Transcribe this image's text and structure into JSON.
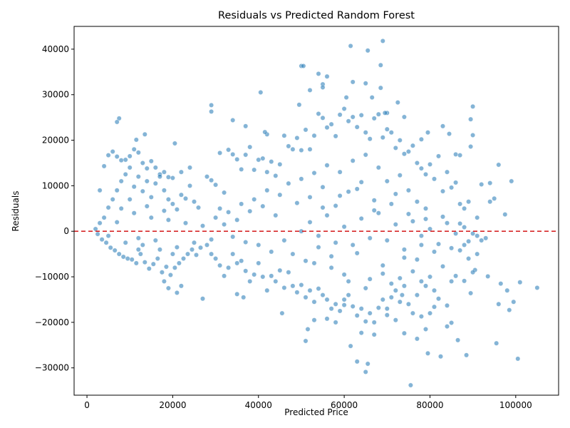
{
  "chart_data": {
    "type": "scatter",
    "title": "Residuals vs Predicted Random Forest",
    "xlabel": "Predicted Price",
    "ylabel": "Residuals",
    "xlim": [
      -3000,
      110000
    ],
    "ylim": [
      -36000,
      45000
    ],
    "xticks": [
      0,
      20000,
      40000,
      60000,
      80000,
      100000
    ],
    "xtick_labels": [
      "0",
      "20000",
      "40000",
      "60000",
      "80000",
      "100000"
    ],
    "yticks": [
      -30000,
      -20000,
      -10000,
      0,
      10000,
      20000,
      30000,
      40000
    ],
    "ytick_labels": [
      "−30000",
      "−20000",
      "−10000",
      "0",
      "10000",
      "20000",
      "30000",
      "40000"
    ],
    "reference_line": {
      "y": 0,
      "style": "dashed",
      "color": "#d62728"
    },
    "grid": false,
    "point_color": "#1f77b4",
    "points": [
      [
        7500,
        24800
      ],
      [
        7000,
        24000
      ],
      [
        13500,
        21300
      ],
      [
        11500,
        20100
      ],
      [
        20500,
        19300
      ],
      [
        29000,
        27700
      ],
      [
        29000,
        26300
      ],
      [
        34000,
        24400
      ],
      [
        40500,
        30500
      ],
      [
        37000,
        23100
      ],
      [
        42000,
        21300
      ],
      [
        41500,
        21800
      ],
      [
        49500,
        27800
      ],
      [
        50000,
        36300
      ],
      [
        50500,
        36300
      ],
      [
        52000,
        31000
      ],
      [
        54000,
        34600
      ],
      [
        55000,
        32300
      ],
      [
        55000,
        31600
      ],
      [
        56000,
        34000
      ],
      [
        61500,
        40700
      ],
      [
        65000,
        32500
      ],
      [
        69000,
        41800
      ],
      [
        68500,
        36500
      ],
      [
        65500,
        39700
      ],
      [
        62000,
        32800
      ],
      [
        60500,
        29400
      ],
      [
        66500,
        29400
      ],
      [
        68500,
        31500
      ],
      [
        72500,
        28300
      ],
      [
        70000,
        26000
      ],
      [
        69500,
        26000
      ],
      [
        74000,
        25100
      ],
      [
        79500,
        21700
      ],
      [
        83000,
        23100
      ],
      [
        84500,
        21400
      ],
      [
        90000,
        27400
      ],
      [
        89500,
        24600
      ],
      [
        90000,
        21100
      ],
      [
        78000,
        20200
      ],
      [
        86000,
        16900
      ],
      [
        87000,
        16700
      ],
      [
        89500,
        18600
      ],
      [
        96000,
        14600
      ],
      [
        99000,
        11000
      ],
      [
        92000,
        10300
      ],
      [
        94000,
        10600
      ],
      [
        97500,
        3700
      ],
      [
        95000,
        7200
      ],
      [
        94000,
        6500
      ],
      [
        12000,
        -4000
      ],
      [
        18000,
        -11000
      ],
      [
        19000,
        -12500
      ],
      [
        21000,
        -13500
      ],
      [
        22000,
        -12000
      ],
      [
        27000,
        -14800
      ],
      [
        35000,
        -13800
      ],
      [
        36500,
        -14500
      ],
      [
        45500,
        -18000
      ],
      [
        51000,
        -24100
      ],
      [
        51500,
        -21500
      ],
      [
        53000,
        -19500
      ],
      [
        56000,
        -19200
      ],
      [
        58000,
        -20000
      ],
      [
        60000,
        -16200
      ],
      [
        61500,
        -25200
      ],
      [
        63000,
        -28600
      ],
      [
        65500,
        -29100
      ],
      [
        65000,
        -30900
      ],
      [
        67000,
        -22700
      ],
      [
        64000,
        -22300
      ],
      [
        70000,
        -18400
      ],
      [
        72000,
        -19500
      ],
      [
        74000,
        -22400
      ],
      [
        75500,
        -33800
      ],
      [
        77000,
        -23600
      ],
      [
        79000,
        -21500
      ],
      [
        78000,
        -18700
      ],
      [
        80000,
        -18000
      ],
      [
        81000,
        -16600
      ],
      [
        82500,
        -27500
      ],
      [
        84000,
        -20900
      ],
      [
        85000,
        -20100
      ],
      [
        86500,
        -23900
      ],
      [
        88500,
        -27200
      ],
      [
        88000,
        -10900
      ],
      [
        89500,
        -13600
      ],
      [
        90500,
        -8500
      ],
      [
        93500,
        -9900
      ],
      [
        95500,
        -24600
      ],
      [
        96000,
        -16000
      ],
      [
        96500,
        -11500
      ],
      [
        98000,
        -13000
      ],
      [
        98500,
        -17300
      ],
      [
        99500,
        -15500
      ],
      [
        100500,
        -28000
      ],
      [
        101000,
        -11200
      ],
      [
        105000,
        -12400
      ],
      [
        79500,
        -26800
      ],
      [
        73500,
        -14000
      ],
      [
        2000,
        500
      ],
      [
        2500,
        -600
      ],
      [
        3000,
        1800
      ],
      [
        3500,
        -1800
      ],
      [
        4000,
        3000
      ],
      [
        4500,
        -2500
      ],
      [
        5000,
        5200
      ],
      [
        5500,
        -3600
      ],
      [
        6000,
        7000
      ],
      [
        6500,
        -4200
      ],
      [
        7000,
        9000
      ],
      [
        7500,
        -5000
      ],
      [
        8000,
        11000
      ],
      [
        8500,
        -5600
      ],
      [
        9000,
        12500
      ],
      [
        9500,
        -6000
      ],
      [
        10000,
        14000
      ],
      [
        10500,
        -6200
      ],
      [
        11000,
        9800
      ],
      [
        11500,
        -7000
      ],
      [
        12000,
        12000
      ],
      [
        12500,
        -5000
      ],
      [
        13000,
        8800
      ],
      [
        13500,
        -6800
      ],
      [
        14000,
        11000
      ],
      [
        14500,
        -8200
      ],
      [
        15000,
        7500
      ],
      [
        15500,
        -7200
      ],
      [
        16000,
        10500
      ],
      [
        16500,
        -6000
      ],
      [
        17000,
        12500
      ],
      [
        17500,
        -9000
      ],
      [
        18000,
        9000
      ],
      [
        18500,
        -7800
      ],
      [
        19000,
        7000
      ],
      [
        19500,
        -9600
      ],
      [
        20000,
        6000
      ],
      [
        20500,
        -8000
      ],
      [
        21000,
        4800
      ],
      [
        21500,
        -7000
      ],
      [
        22000,
        8000
      ],
      [
        22500,
        -6000
      ],
      [
        23000,
        7200
      ],
      [
        23500,
        -5000
      ],
      [
        24000,
        10000
      ],
      [
        24500,
        -4000
      ],
      [
        25000,
        6500
      ],
      [
        25500,
        -5200
      ],
      [
        26000,
        5200
      ],
      [
        26500,
        -3600
      ],
      [
        3000,
        9000
      ],
      [
        4000,
        14300
      ],
      [
        5000,
        16700
      ],
      [
        6000,
        17500
      ],
      [
        7000,
        16400
      ],
      [
        8000,
        15600
      ],
      [
        9000,
        15700
      ],
      [
        10000,
        16500
      ],
      [
        11000,
        18000
      ],
      [
        12000,
        17300
      ],
      [
        13000,
        15000
      ],
      [
        14000,
        13800
      ],
      [
        15000,
        15400
      ],
      [
        16000,
        14000
      ],
      [
        17000,
        12000
      ],
      [
        18000,
        13000
      ],
      [
        19000,
        11900
      ],
      [
        20000,
        11700
      ],
      [
        22000,
        13000
      ],
      [
        24000,
        14000
      ],
      [
        28000,
        12000
      ],
      [
        29000,
        11200
      ],
      [
        30000,
        10200
      ],
      [
        31000,
        17200
      ],
      [
        32000,
        8500
      ],
      [
        33000,
        17900
      ],
      [
        34000,
        16900
      ],
      [
        35000,
        15800
      ],
      [
        36000,
        13600
      ],
      [
        37000,
        16800
      ],
      [
        38000,
        18500
      ],
      [
        39000,
        13500
      ],
      [
        40000,
        15700
      ],
      [
        41000,
        16000
      ],
      [
        42000,
        13000
      ],
      [
        43000,
        15300
      ],
      [
        44000,
        12200
      ],
      [
        45000,
        14700
      ],
      [
        46000,
        21000
      ],
      [
        47000,
        18700
      ],
      [
        28000,
        -3000
      ],
      [
        29000,
        -5000
      ],
      [
        30000,
        -6000
      ],
      [
        31000,
        -7500
      ],
      [
        32000,
        -9800
      ],
      [
        33000,
        -8000
      ],
      [
        34000,
        -5000
      ],
      [
        35000,
        -7000
      ],
      [
        36000,
        -6500
      ],
      [
        37000,
        -8700
      ],
      [
        38000,
        -11000
      ],
      [
        39000,
        -9500
      ],
      [
        40000,
        -7000
      ],
      [
        41000,
        -10000
      ],
      [
        42000,
        -13000
      ],
      [
        43000,
        -9800
      ],
      [
        44000,
        -11000
      ],
      [
        45000,
        -8600
      ],
      [
        46000,
        -12400
      ],
      [
        47000,
        -9000
      ],
      [
        48000,
        -12000
      ],
      [
        49000,
        -13400
      ],
      [
        50000,
        -11800
      ],
      [
        51000,
        -14500
      ],
      [
        52000,
        -13000
      ],
      [
        53000,
        -15500
      ],
      [
        54000,
        -12600
      ],
      [
        55000,
        -14000
      ],
      [
        56000,
        -15000
      ],
      [
        57000,
        -17000
      ],
      [
        58000,
        -16000
      ],
      [
        59000,
        -17500
      ],
      [
        60000,
        -15000
      ],
      [
        61000,
        -14000
      ],
      [
        62000,
        -16500
      ],
      [
        63000,
        -18500
      ],
      [
        64000,
        -17000
      ],
      [
        65000,
        -19800
      ],
      [
        66000,
        -18000
      ],
      [
        67000,
        -20000
      ],
      [
        68000,
        -16800
      ],
      [
        69000,
        -15000
      ],
      [
        70000,
        -17000
      ],
      [
        71000,
        -14500
      ],
      [
        72000,
        -13000
      ],
      [
        73000,
        -15500
      ],
      [
        74000,
        -12000
      ],
      [
        75000,
        -16000
      ],
      [
        76000,
        -18000
      ],
      [
        77000,
        -14000
      ],
      [
        48000,
        18000
      ],
      [
        49000,
        20500
      ],
      [
        50000,
        17800
      ],
      [
        51000,
        22300
      ],
      [
        52000,
        18000
      ],
      [
        53000,
        21000
      ],
      [
        54000,
        25800
      ],
      [
        55000,
        24900
      ],
      [
        56000,
        22800
      ],
      [
        57000,
        23500
      ],
      [
        58000,
        20900
      ],
      [
        59000,
        25600
      ],
      [
        60000,
        26900
      ],
      [
        61000,
        24200
      ],
      [
        62000,
        25100
      ],
      [
        63000,
        22900
      ],
      [
        64000,
        25500
      ],
      [
        65000,
        21700
      ],
      [
        66000,
        20300
      ],
      [
        67000,
        24800
      ],
      [
        68000,
        25700
      ],
      [
        69000,
        20600
      ],
      [
        70000,
        22400
      ],
      [
        71000,
        21700
      ],
      [
        72000,
        18300
      ],
      [
        73000,
        20000
      ],
      [
        74000,
        17000
      ],
      [
        75000,
        17500
      ],
      [
        76000,
        18800
      ],
      [
        77000,
        15000
      ],
      [
        78000,
        13800
      ],
      [
        79000,
        12500
      ],
      [
        80000,
        14700
      ],
      [
        81000,
        11500
      ],
      [
        82000,
        16500
      ],
      [
        83000,
        8800
      ],
      [
        84000,
        13000
      ],
      [
        85000,
        9600
      ],
      [
        86000,
        10700
      ],
      [
        87000,
        6000
      ],
      [
        88000,
        5000
      ],
      [
        89000,
        6500
      ],
      [
        90000,
        -500
      ],
      [
        91000,
        3000
      ],
      [
        92000,
        -2000
      ],
      [
        93000,
        -1500
      ],
      [
        91000,
        -5000
      ],
      [
        90000,
        -9000
      ],
      [
        89000,
        -6000
      ],
      [
        88000,
        -3000
      ],
      [
        87000,
        -4200
      ],
      [
        86000,
        -9800
      ],
      [
        85000,
        -11000
      ],
      [
        84000,
        -16300
      ],
      [
        83000,
        -7700
      ],
      [
        82000,
        -14800
      ],
      [
        81000,
        -13000
      ],
      [
        80000,
        -10000
      ],
      [
        79000,
        -12000
      ],
      [
        78000,
        -11000
      ],
      [
        30000,
        3000
      ],
      [
        31000,
        5000
      ],
      [
        32000,
        1500
      ],
      [
        33000,
        4200
      ],
      [
        34000,
        -1200
      ],
      [
        35000,
        2500
      ],
      [
        36000,
        6000
      ],
      [
        37000,
        -2400
      ],
      [
        38000,
        4400
      ],
      [
        39000,
        7000
      ],
      [
        40000,
        -3000
      ],
      [
        41000,
        5500
      ],
      [
        42000,
        9000
      ],
      [
        43000,
        -4500
      ],
      [
        44000,
        3500
      ],
      [
        45000,
        8000
      ],
      [
        46000,
        -2000
      ],
      [
        47000,
        10500
      ],
      [
        48000,
        -5000
      ],
      [
        49000,
        6200
      ],
      [
        50000,
        11500
      ],
      [
        51000,
        -6500
      ],
      [
        52000,
        7500
      ],
      [
        53000,
        12800
      ],
      [
        54000,
        -3500
      ],
      [
        55000,
        9700
      ],
      [
        56000,
        14500
      ],
      [
        57000,
        -8000
      ],
      [
        58000,
        5600
      ],
      [
        59000,
        13000
      ],
      [
        60000,
        -9500
      ],
      [
        61000,
        8700
      ],
      [
        62000,
        15500
      ],
      [
        63000,
        -4800
      ],
      [
        64000,
        10800
      ],
      [
        65000,
        16800
      ],
      [
        66000,
        -10500
      ],
      [
        67000,
        6800
      ],
      [
        68000,
        14000
      ],
      [
        69000,
        -7500
      ],
      [
        70000,
        11000
      ],
      [
        71000,
        -11500
      ],
      [
        72000,
        8200
      ],
      [
        73000,
        12300
      ],
      [
        74000,
        -5800
      ],
      [
        75000,
        9000
      ],
      [
        76000,
        -8800
      ],
      [
        77000,
        6500
      ],
      [
        78000,
        -3000
      ],
      [
        79000,
        5000
      ],
      [
        50000,
        0
      ],
      [
        52000,
        2000
      ],
      [
        54000,
        -1000
      ],
      [
        56000,
        3500
      ],
      [
        58000,
        -2500
      ],
      [
        60000,
        1000
      ],
      [
        62000,
        -3000
      ],
      [
        64000,
        2800
      ],
      [
        66000,
        -1500
      ],
      [
        68000,
        4000
      ],
      [
        70000,
        -2000
      ],
      [
        72000,
        1500
      ],
      [
        74000,
        -4000
      ],
      [
        76000,
        2200
      ],
      [
        78000,
        -1000
      ],
      [
        80000,
        500
      ],
      [
        82000,
        -2800
      ],
      [
        84000,
        1800
      ],
      [
        86000,
        -500
      ],
      [
        88000,
        900
      ],
      [
        53000,
        -7000
      ],
      [
        55000,
        5200
      ],
      [
        57000,
        -5500
      ],
      [
        59000,
        7800
      ],
      [
        61000,
        -11000
      ],
      [
        63000,
        9300
      ],
      [
        65000,
        -12500
      ],
      [
        67000,
        4600
      ],
      [
        69000,
        -9300
      ],
      [
        71000,
        6000
      ],
      [
        73000,
        -10300
      ],
      [
        75000,
        3800
      ],
      [
        77000,
        -6200
      ],
      [
        79000,
        2700
      ],
      [
        81000,
        -4500
      ],
      [
        83000,
        3200
      ],
      [
        85000,
        -3700
      ],
      [
        87000,
        1700
      ],
      [
        89000,
        -2200
      ],
      [
        91000,
        -1000
      ],
      [
        5000,
        -1000
      ],
      [
        7000,
        2000
      ],
      [
        9000,
        -2500
      ],
      [
        11000,
        4000
      ],
      [
        13000,
        -3000
      ],
      [
        15000,
        3000
      ],
      [
        17000,
        -4000
      ],
      [
        19000,
        2500
      ],
      [
        21000,
        -3500
      ],
      [
        23000,
        1800
      ],
      [
        25000,
        -2500
      ],
      [
        27000,
        1200
      ],
      [
        29000,
        -1800
      ],
      [
        8000,
        5000
      ],
      [
        10000,
        7000
      ],
      [
        12000,
        -1500
      ],
      [
        14000,
        5500
      ],
      [
        16000,
        -2000
      ],
      [
        18000,
        4500
      ],
      [
        20000,
        -5000
      ]
    ]
  }
}
